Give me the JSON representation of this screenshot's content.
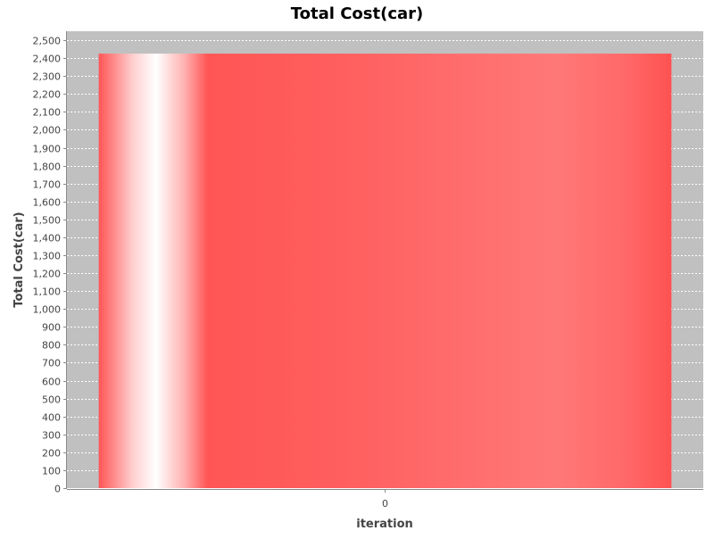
{
  "chart_data": {
    "type": "bar",
    "title": "Total Cost(car)",
    "xlabel": "iteration",
    "ylabel": "Total Cost(car)",
    "categories": [
      "0"
    ],
    "values": [
      2425
    ],
    "ylim": [
      0,
      2550
    ],
    "yticks": [
      0,
      100,
      200,
      300,
      400,
      500,
      600,
      700,
      800,
      900,
      1000,
      1100,
      1200,
      1300,
      1400,
      1500,
      1600,
      1700,
      1800,
      1900,
      2000,
      2100,
      2200,
      2300,
      2400,
      2500
    ],
    "ytick_labels": [
      "0",
      "100",
      "200",
      "300",
      "400",
      "500",
      "600",
      "700",
      "800",
      "900",
      "1,000",
      "1,100",
      "1,200",
      "1,300",
      "1,400",
      "1,500",
      "1,600",
      "1,700",
      "1,800",
      "1,900",
      "2,000",
      "2,100",
      "2,200",
      "2,300",
      "2,400",
      "2,500"
    ],
    "grid": true,
    "colors": {
      "plot_background": "#c0c0c0",
      "bar": "#ff5555",
      "bar_highlight": "#ffffff",
      "gridline": "#ffffff",
      "axis": "#888888"
    }
  }
}
